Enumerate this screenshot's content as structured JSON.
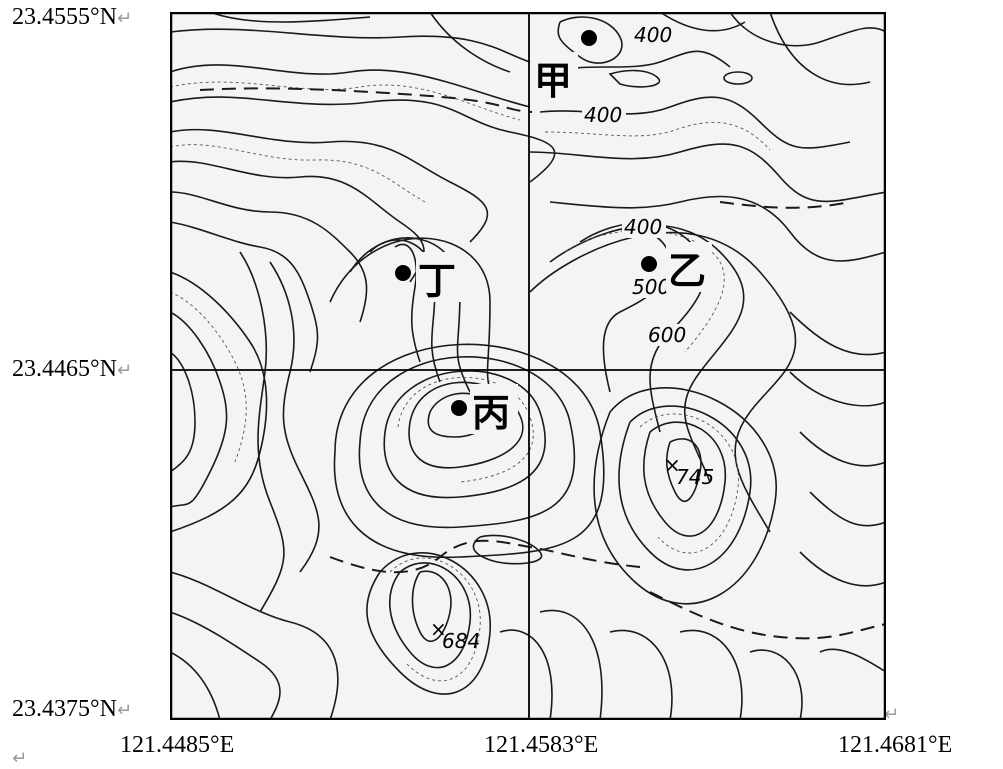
{
  "coordinates": {
    "lat_top": "23.4555°N",
    "lat_mid": "23.4465°N",
    "lat_bottom": "23.4375°N",
    "lon_left": "121.4485°E",
    "lon_mid": "121.4583°E",
    "lon_right": "121.4681°E",
    "return_mark": "↵"
  },
  "points": [
    {
      "id": "jia",
      "label": "甲"
    },
    {
      "id": "yi",
      "label": "乙"
    },
    {
      "id": "bing",
      "label": "丙"
    },
    {
      "id": "ding",
      "label": "丁"
    }
  ],
  "contour_labels": [
    "400",
    "400",
    "400",
    "500",
    "600",
    "745",
    "684"
  ],
  "map": {
    "contour_color": "#1a1a1a",
    "background": "#f4f4f4"
  }
}
